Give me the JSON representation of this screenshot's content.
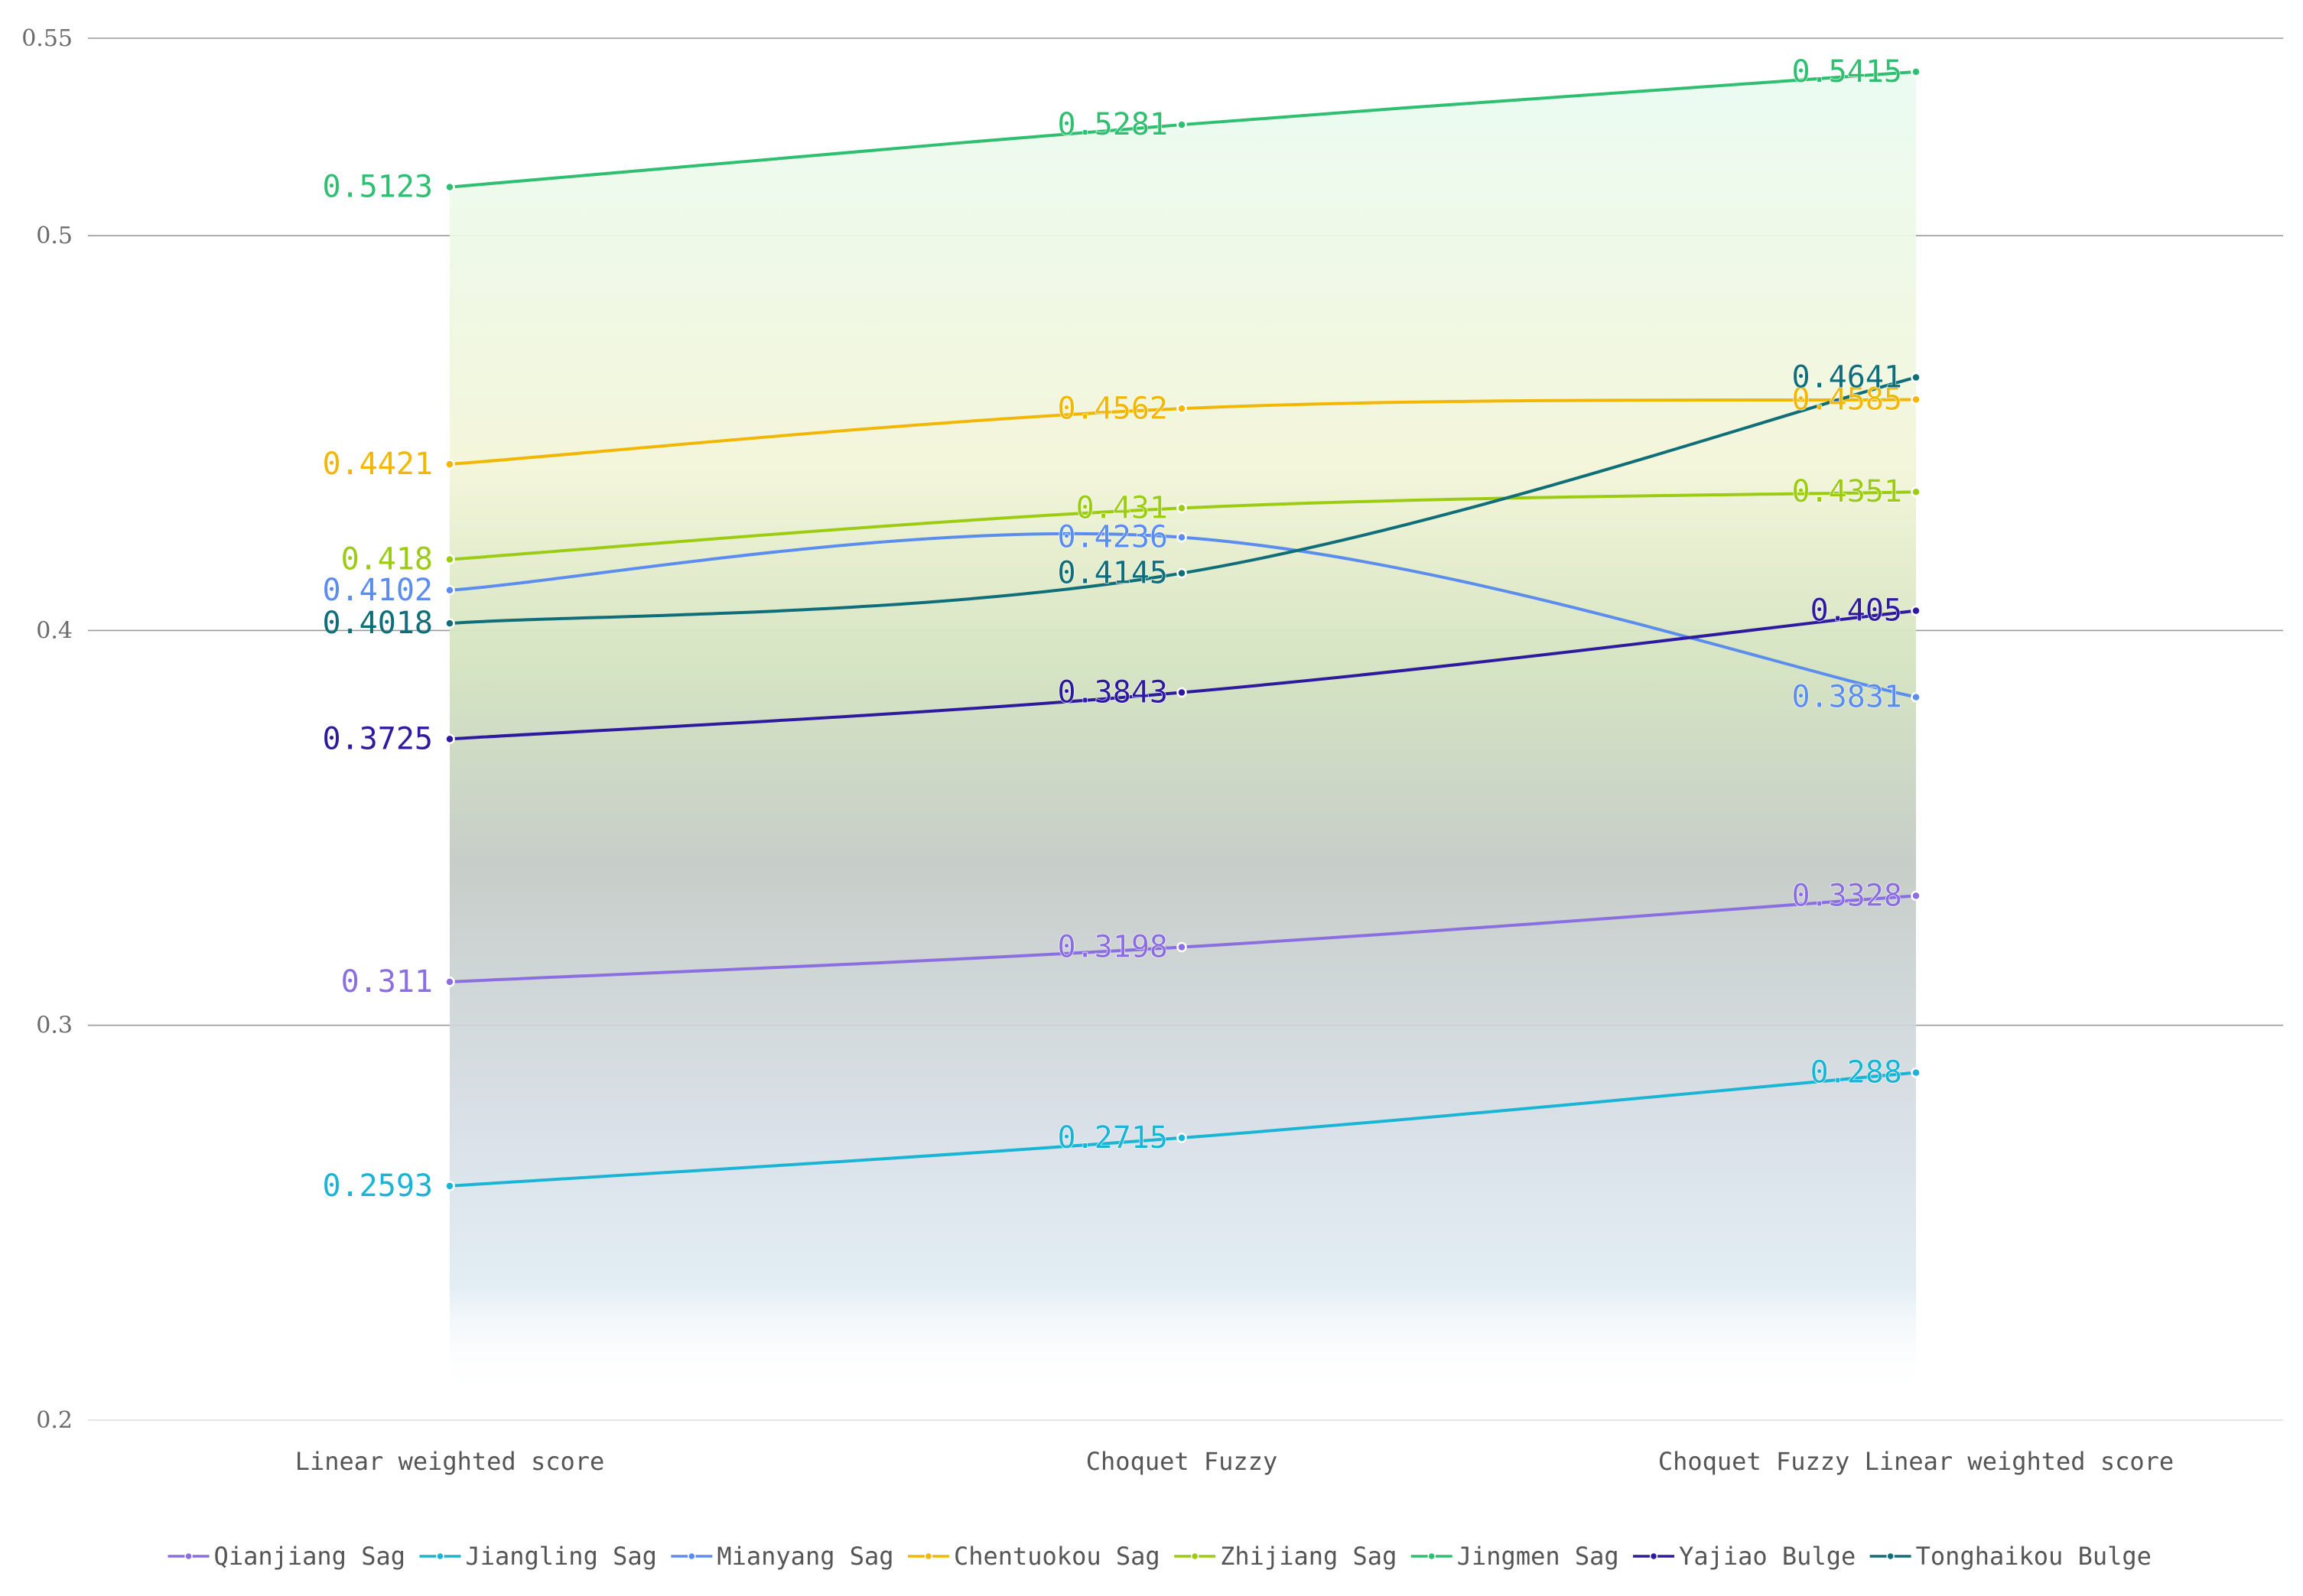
{
  "chart_data": {
    "type": "line",
    "title": "",
    "xlabel": "",
    "ylabel": "",
    "categories": [
      "Linear weighted score",
      "Choquet Fuzzy",
      "Choquet Fuzzy Linear weighted score"
    ],
    "ylim": [
      0.2,
      0.55
    ],
    "yticks": [
      0.2,
      0.3,
      0.4,
      0.5,
      0.55
    ],
    "ytick_labels": [
      "0.2",
      "0.3",
      "0.4",
      "0.5",
      "0.55"
    ],
    "grid": true,
    "legend_position": "bottom",
    "series": [
      {
        "name": "Qianjiang Sag",
        "color": "#8b6fe0",
        "values": [
          0.311,
          0.3198,
          0.3328
        ],
        "labels": [
          "0.311",
          "0.3198",
          "0.3328"
        ]
      },
      {
        "name": "Jiangling Sag",
        "color": "#1ab4d4",
        "values": [
          0.2593,
          0.2715,
          0.288
        ],
        "labels": [
          "0.2593",
          "0.2715",
          "0.288"
        ]
      },
      {
        "name": "Mianyang Sag",
        "color": "#5b8def",
        "values": [
          0.4102,
          0.4236,
          0.3831
        ],
        "labels": [
          "0.4102",
          "0.4236",
          "0.3831"
        ]
      },
      {
        "name": "Chentuokou Sag",
        "color": "#f2b705",
        "values": [
          0.4421,
          0.4562,
          0.4585
        ],
        "labels": [
          "0.4421",
          "0.4562",
          "0.4585"
        ]
      },
      {
        "name": "Zhijiang Sag",
        "color": "#9ccc12",
        "values": [
          0.418,
          0.431,
          0.4351
        ],
        "labels": [
          "0.418",
          "0.431",
          "0.4351"
        ]
      },
      {
        "name": "Jingmen Sag",
        "color": "#2fbf71",
        "values": [
          0.5123,
          0.5281,
          0.5415
        ],
        "labels": [
          "0.5123",
          "0.5281",
          "0.5415"
        ]
      },
      {
        "name": "Yajiao Bulge",
        "color": "#2e1a9e",
        "values": [
          0.3725,
          0.3843,
          0.405
        ],
        "labels": [
          "0.3725",
          "0.3843",
          "0.405"
        ]
      },
      {
        "name": "Tonghaikou Bulge",
        "color": "#0f6e78",
        "values": [
          0.4018,
          0.4145,
          0.4641
        ],
        "labels": [
          "0.4018",
          "0.4145",
          "0.4641"
        ]
      }
    ]
  }
}
